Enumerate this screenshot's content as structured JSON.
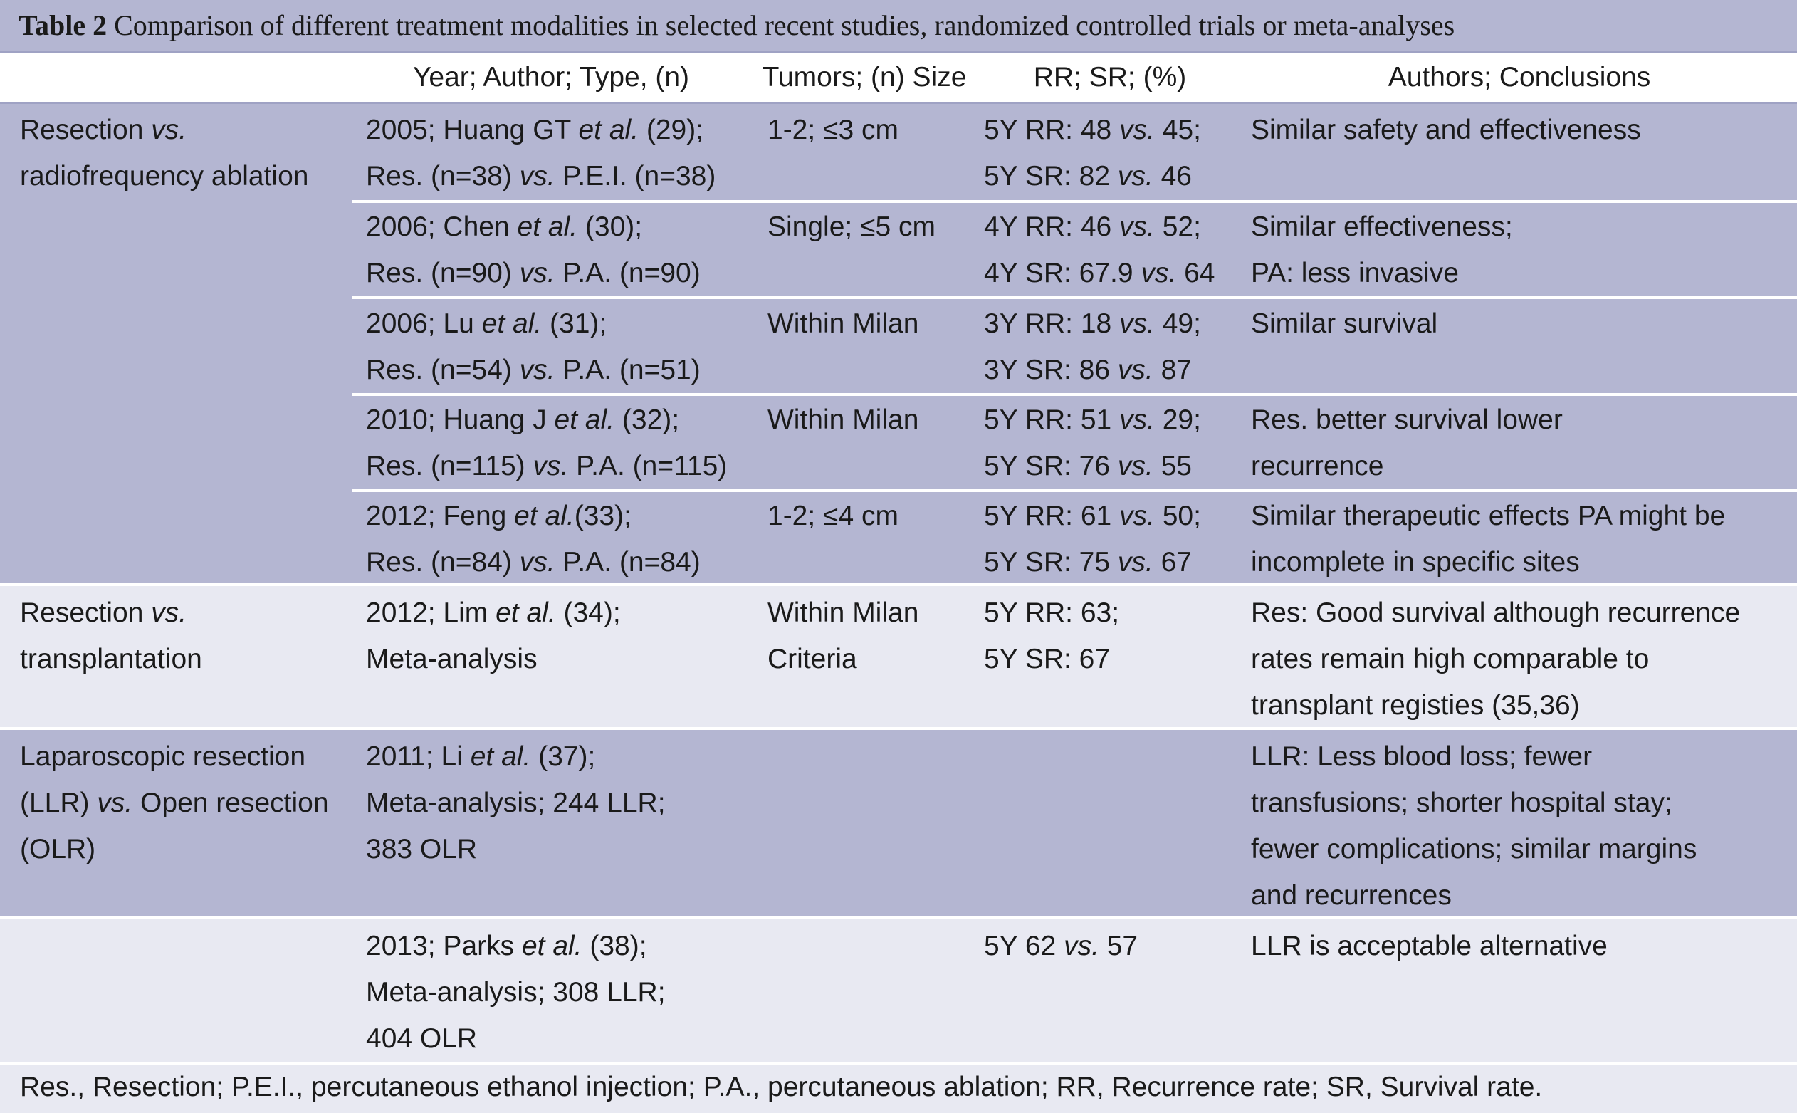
{
  "title": {
    "label": "Table 2",
    "text": "Comparison of different treatment modalities in selected recent studies, randomized controlled trials or meta-analyses"
  },
  "headers": [
    "Year; Author; Type, (n)",
    "Tumors; (n) Size",
    "RR; SR; (%)",
    "Authors; Conclusions"
  ],
  "groups": [
    {
      "name": "Resection vs. radiofrequency ablation",
      "label_lines": [
        "Resection vs.",
        "radiofrequency ablation"
      ],
      "rows": [
        {
          "study": [
            "2005; Huang GT et al. (29);",
            "Res. (n=38) vs. P.E.I. (n=38)"
          ],
          "tumors": [
            "1-2; ≤3 cm"
          ],
          "rates": [
            "5Y RR: 48 vs. 45;",
            "5Y SR: 82 vs. 46"
          ],
          "conclusions": [
            "Similar safety and effectiveness"
          ]
        },
        {
          "study": [
            "2006; Chen et al. (30);",
            "Res. (n=90) vs. P.A. (n=90)"
          ],
          "tumors": [
            "Single; ≤5 cm"
          ],
          "rates": [
            "4Y RR: 46 vs. 52;",
            "4Y SR: 67.9 vs. 64"
          ],
          "conclusions": [
            "Similar effectiveness;",
            "PA: less invasive"
          ]
        },
        {
          "study": [
            "2006; Lu et al. (31);",
            "Res. (n=54) vs. P.A. (n=51)"
          ],
          "tumors": [
            "Within Milan"
          ],
          "rates": [
            "3Y RR: 18 vs. 49;",
            "3Y SR: 86 vs. 87"
          ],
          "conclusions": [
            "Similar survival"
          ]
        },
        {
          "study": [
            "2010; Huang J et al. (32);",
            "Res. (n=115) vs. P.A. (n=115)"
          ],
          "tumors": [
            "Within Milan"
          ],
          "rates": [
            "5Y RR: 51 vs. 29;",
            "5Y SR: 76 vs. 55"
          ],
          "conclusions": [
            "Res. better survival lower",
            "recurrence"
          ]
        },
        {
          "study": [
            "2012; Feng et al.(33);",
            "Res. (n=84) vs. P.A. (n=84)"
          ],
          "tumors": [
            "1-2; ≤4 cm"
          ],
          "rates": [
            "5Y RR: 61 vs. 50;",
            "5Y SR: 75 vs. 67"
          ],
          "conclusions": [
            "Similar therapeutic effects PA might be",
            "incomplete in specific sites"
          ]
        }
      ]
    },
    {
      "name": "Resection vs. transplantation",
      "label_lines": [
        "Resection vs.",
        "transplantation"
      ],
      "rows": [
        {
          "study": [
            "2012; Lim et al. (34);",
            "Meta-analysis"
          ],
          "tumors": [
            "Within Milan",
            "Criteria"
          ],
          "rates": [
            "5Y RR: 63;",
            "5Y SR: 67"
          ],
          "conclusions": [
            "Res: Good survival although recurrence",
            "rates remain high comparable to",
            "transplant registies (35,36)"
          ]
        }
      ]
    },
    {
      "name": "Laparoscopic resection (LLR) vs. Open resection (OLR)",
      "label_lines": [
        "Laparoscopic resection",
        "(LLR) vs. Open resection",
        "(OLR)"
      ],
      "rows": [
        {
          "study": [
            "2011; Li et al. (37);",
            "Meta-analysis; 244 LLR;",
            "383 OLR"
          ],
          "tumors": [],
          "rates": [],
          "conclusions": [
            "LLR: Less blood loss; fewer",
            "transfusions; shorter hospital stay;",
            "fewer complications; similar margins",
            "and recurrences"
          ]
        }
      ]
    },
    {
      "name": "",
      "label_lines": [],
      "rows": [
        {
          "study": [
            "2013; Parks et al. (38);",
            "Meta-analysis; 308 LLR;",
            "404 OLR"
          ],
          "tumors": [],
          "rates": [
            "5Y 62 vs. 57"
          ],
          "conclusions": [
            "LLR is acceptable alternative"
          ]
        }
      ]
    }
  ],
  "footnote": "Res., Resection; P.E.I., percutaneous ethanol injection; P.A., percutaneous ablation; RR, Recurrence rate; SR, Survival rate.",
  "colors": {
    "dark_band": "#b4b6d2",
    "light_band": "#e8e9f2",
    "rule": "#9fa2c4"
  }
}
